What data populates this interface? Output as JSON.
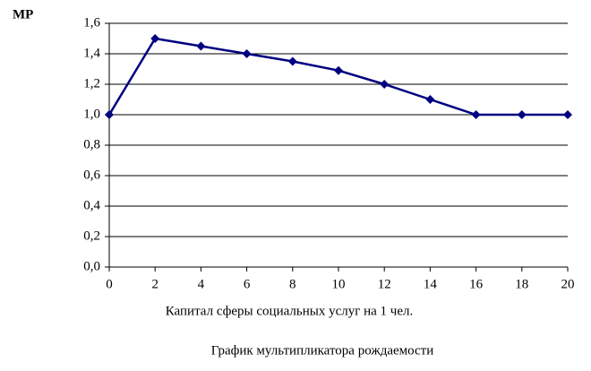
{
  "chart_data": {
    "type": "line",
    "title": "График мультипликатора рождаемости",
    "y_label": "МР",
    "x_label": "Капитал сферы социальных услуг на 1 чел.",
    "x": [
      0,
      2,
      4,
      6,
      8,
      10,
      12,
      14,
      16,
      18,
      20
    ],
    "series": [
      {
        "name": "МР",
        "color": "#000080",
        "values": [
          1.0,
          1.5,
          1.45,
          1.4,
          1.35,
          1.29,
          1.2,
          1.1,
          1.0,
          1.0,
          1.0
        ]
      }
    ],
    "xlim": [
      0,
      20
    ],
    "xticks": [
      0,
      2,
      4,
      6,
      8,
      10,
      12,
      14,
      16,
      18,
      20
    ],
    "ylim": [
      0,
      1.6
    ],
    "yticks": [
      {
        "value": 0,
        "label": "0,0"
      },
      {
        "value": 0.2,
        "label": "0,2"
      },
      {
        "value": 0.4,
        "label": "0,4"
      },
      {
        "value": 0.6,
        "label": "0,6"
      },
      {
        "value": 0.8,
        "label": "0,8"
      },
      {
        "value": 1.0,
        "label": "1,0"
      },
      {
        "value": 1.2,
        "label": "1,2"
      },
      {
        "value": 1.4,
        "label": "1,4"
      },
      {
        "value": 1.6,
        "label": "1,6"
      }
    ],
    "grid": true,
    "legend": false
  }
}
